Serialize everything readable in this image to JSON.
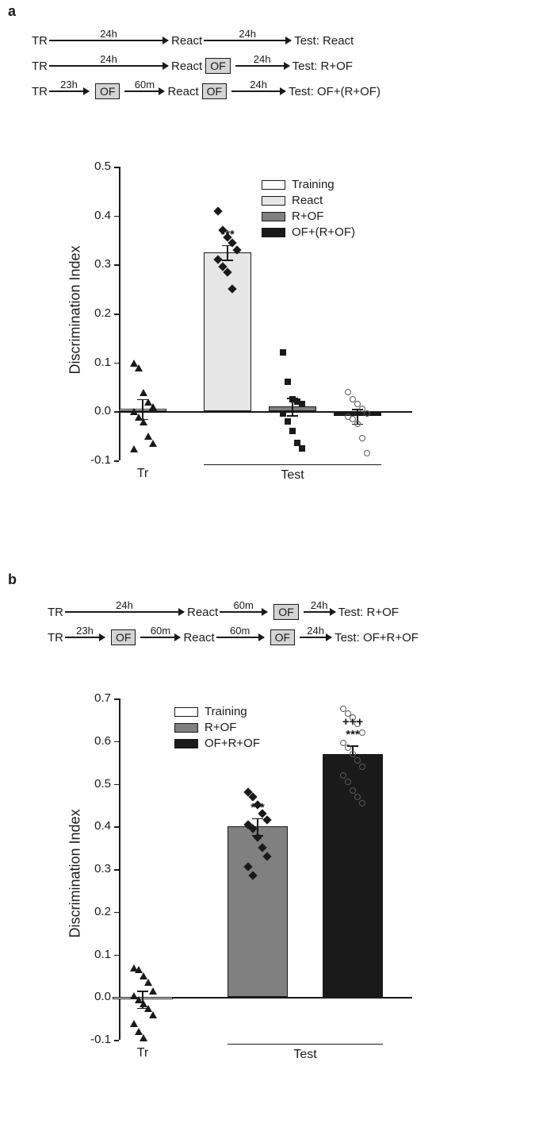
{
  "panel_a": {
    "label": "a",
    "protocol": {
      "rows": [
        {
          "segments": [
            "TR",
            "arrow:24h:150",
            "React",
            "arrow:24h:110",
            "Test: React"
          ]
        },
        {
          "segments": [
            "TR",
            "arrow:24h:150",
            "React",
            "of",
            "arrow:24h:68",
            "Test: R+OF"
          ]
        },
        {
          "segments": [
            "TR",
            "arrow:23h:50",
            "of",
            "arrow:60m:50",
            "React",
            "of",
            "arrow:24h:68",
            "Test: OF+(R+OF)"
          ]
        }
      ]
    },
    "chart": {
      "type": "bar-scatter",
      "ylabel": "Discrimination Index",
      "ylim": [
        -0.1,
        0.5
      ],
      "yticks": [
        -0.1,
        0.0,
        0.1,
        0.2,
        0.3,
        0.4,
        0.5
      ],
      "xlabels_group": [
        "Tr",
        "Test"
      ],
      "legend": [
        {
          "label": "Training",
          "color": "#ffffff"
        },
        {
          "label": "React",
          "color": "#e6e6e6"
        },
        {
          "label": "R+OF",
          "color": "#808080"
        },
        {
          "label": "OF+(R+OF)",
          "color": "#1a1a1a"
        }
      ],
      "bars": [
        {
          "x": 0,
          "mean": 0.005,
          "sem": 0.02,
          "color": "#ffffff",
          "marker": "triangle",
          "points": [
            0.1,
            0.09,
            0.04,
            0.02,
            0.01,
            0.0,
            -0.01,
            -0.02,
            -0.05,
            -0.065,
            -0.075
          ],
          "sig": ""
        },
        {
          "x": 1,
          "mean": 0.325,
          "sem": 0.015,
          "color": "#e6e6e6",
          "marker": "diamond",
          "points": [
            0.41,
            0.37,
            0.355,
            0.345,
            0.33,
            0.31,
            0.295,
            0.285,
            0.25
          ],
          "sig": "***"
        },
        {
          "x": 2,
          "mean": 0.01,
          "sem": 0.018,
          "color": "#808080",
          "marker": "square",
          "points": [
            0.12,
            0.06,
            0.025,
            0.02,
            0.015,
            -0.005,
            -0.02,
            -0.04,
            -0.065,
            -0.075
          ],
          "sig": ""
        },
        {
          "x": 3,
          "mean": -0.01,
          "sem": 0.015,
          "color": "#1a1a1a",
          "marker": "circle-open-g",
          "points": [
            0.04,
            0.025,
            0.015,
            0.005,
            -0.005,
            -0.01,
            -0.015,
            -0.025,
            -0.055,
            -0.085
          ],
          "sig": ""
        }
      ]
    }
  },
  "panel_b": {
    "label": "b",
    "protocol": {
      "rows": [
        {
          "segments": [
            "TR",
            "arrow:24h:150",
            "React",
            "arrow:60m:60",
            "of",
            "arrow:24h:40",
            "Test: R+OF"
          ]
        },
        {
          "segments": [
            "TR",
            "arrow:23h:50",
            "of",
            "arrow:60m:50",
            "React",
            "arrow:60m:60",
            "of",
            "arrow:24h:40",
            "Test: OF+R+OF"
          ]
        }
      ]
    },
    "chart": {
      "type": "bar-scatter",
      "ylabel": "Discrimination Index",
      "ylim": [
        -0.1,
        0.7
      ],
      "yticks": [
        -0.1,
        0.0,
        0.1,
        0.2,
        0.3,
        0.4,
        0.5,
        0.6,
        0.7
      ],
      "xlabels_group": [
        "Tr",
        "Test"
      ],
      "legend": [
        {
          "label": "Training",
          "color": "#ffffff"
        },
        {
          "label": "R+OF",
          "color": "#808080"
        },
        {
          "label": "OF+R+OF",
          "color": "#1a1a1a"
        }
      ],
      "bars": [
        {
          "x": 0,
          "mean": -0.005,
          "sem": 0.02,
          "color": "#ffffff",
          "marker": "triangle",
          "points": [
            0.07,
            0.065,
            0.05,
            0.035,
            0.015,
            0.005,
            -0.005,
            -0.015,
            -0.025,
            -0.04,
            -0.06,
            -0.08,
            -0.095
          ],
          "sig": ""
        },
        {
          "x": 1,
          "mean": 0.4,
          "sem": 0.02,
          "color": "#808080",
          "marker": "diamond",
          "points": [
            0.48,
            0.47,
            0.45,
            0.43,
            0.415,
            0.405,
            0.395,
            0.375,
            0.35,
            0.33,
            0.305,
            0.285
          ],
          "sig": "***"
        },
        {
          "x": 2,
          "mean": 0.57,
          "sem": 0.02,
          "color": "#1a1a1a",
          "marker": "circle-open-g",
          "points": [
            0.675,
            0.665,
            0.655,
            0.64,
            0.62,
            0.595,
            0.585,
            0.57,
            0.555,
            0.54,
            0.52,
            0.505,
            0.485,
            0.47,
            0.455
          ],
          "sig": "***",
          "sig2": "+++"
        }
      ]
    }
  }
}
